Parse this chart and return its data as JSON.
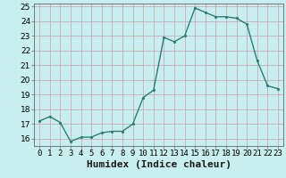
{
  "xlabel": "Humidex (Indice chaleur)",
  "ylabel": "",
  "x": [
    0,
    1,
    2,
    3,
    4,
    5,
    6,
    7,
    8,
    9,
    10,
    11,
    12,
    13,
    14,
    15,
    16,
    17,
    18,
    19,
    20,
    21,
    22,
    23
  ],
  "y": [
    17.2,
    17.5,
    17.1,
    15.8,
    16.1,
    16.1,
    16.4,
    16.5,
    16.5,
    17.0,
    18.8,
    19.3,
    22.9,
    22.6,
    23.0,
    24.9,
    24.6,
    24.3,
    24.3,
    24.2,
    23.8,
    21.3,
    19.6,
    19.4
  ],
  "line_color": "#2d7d72",
  "marker_color": "#2d7d72",
  "bg_color": "#c8eef0",
  "grid_color": "#c8a0a0",
  "ylim": [
    15.5,
    25.2
  ],
  "xlim": [
    -0.5,
    23.5
  ],
  "yticks": [
    16,
    17,
    18,
    19,
    20,
    21,
    22,
    23,
    24,
    25
  ],
  "xticks": [
    0,
    1,
    2,
    3,
    4,
    5,
    6,
    7,
    8,
    9,
    10,
    11,
    12,
    13,
    14,
    15,
    16,
    17,
    18,
    19,
    20,
    21,
    22,
    23
  ],
  "xtick_labels": [
    "0",
    "1",
    "2",
    "3",
    "4",
    "5",
    "6",
    "7",
    "8",
    "9",
    "10",
    "11",
    "12",
    "13",
    "14",
    "15",
    "16",
    "17",
    "18",
    "19",
    "20",
    "21",
    "22",
    "23"
  ],
  "xlabel_fontsize": 8,
  "tick_fontsize": 6.5,
  "linewidth": 1.0,
  "markersize": 2.5
}
